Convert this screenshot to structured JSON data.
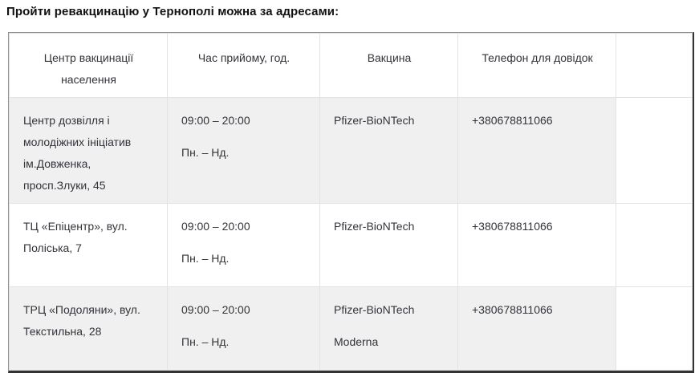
{
  "page": {
    "title": "Пройти ревакцинацію у Тернополі можна за адресами:"
  },
  "table": {
    "headers": {
      "center": "Центр вакцинації населення",
      "hours": "Час прийому, год.",
      "vaccine": "Вакцина",
      "phone": "Телефон для довідок"
    },
    "rows": [
      {
        "center": "Центр дозвілля і молодіжних ініціатив ім.Довженка, просп.Злуки, 45",
        "hours": [
          "09:00 – 20:00",
          "Пн. – Нд."
        ],
        "vaccine": [
          "Pfizer-BioNTech"
        ],
        "phone": "+380678811066"
      },
      {
        "center": "ТЦ «Епіцентр», вул. Поліська, 7",
        "hours": [
          "09:00 – 20:00",
          "Пн. – Нд."
        ],
        "vaccine": [
          "Pfizer-BioNTech"
        ],
        "phone": "+380678811066"
      },
      {
        "center": "ТРЦ «Подоляни», вул. Текстильна, 28",
        "hours": [
          "09:00 – 20:00",
          "Пн. – Нд."
        ],
        "vaccine": [
          "Pfizer-BioNTech",
          "Moderna"
        ],
        "phone": "+380678811066"
      }
    ]
  },
  "colors": {
    "row_alt_background": "#f0f0f1",
    "body_text": "#33333a",
    "heading_text": "#111111",
    "inner_border": "#e3e3e3",
    "outer_border_light": "#919191",
    "outer_border_dark": "#333333"
  }
}
